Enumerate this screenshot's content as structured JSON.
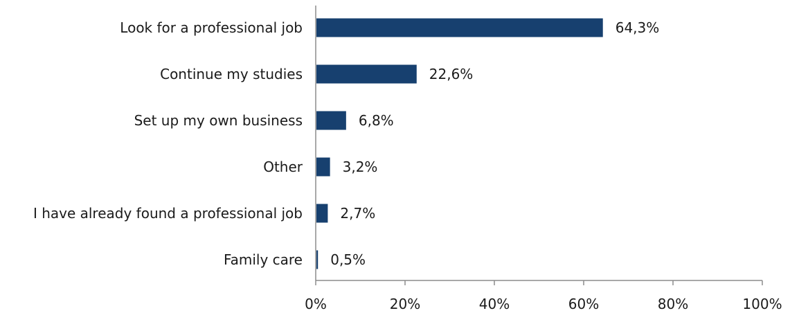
{
  "chart_data": {
    "type": "bar",
    "orientation": "horizontal",
    "title": "",
    "xlabel": "",
    "ylabel": "",
    "categories": [
      "Look for a professional job",
      "Continue my studies",
      "Set up my own business",
      "Other",
      "I have already found a professional job",
      "Family care"
    ],
    "values": [
      64.3,
      22.6,
      6.8,
      3.2,
      2.7,
      0.5
    ],
    "value_labels": [
      "64,3%",
      "22,6%",
      "6,8%",
      "3,2%",
      "2,7%",
      "0,5%"
    ],
    "x_ticks": [
      "0%",
      "20%",
      "40%",
      "60%",
      "80%",
      "100%"
    ],
    "xlim": [
      0,
      100
    ],
    "bar_color": "#17406f",
    "grid": false,
    "legend": "none"
  }
}
